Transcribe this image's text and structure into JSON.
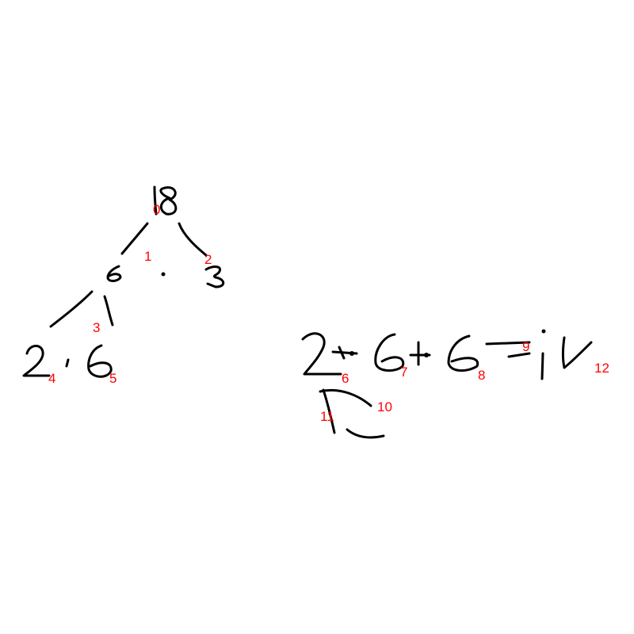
{
  "colors": {
    "background": "#ffffff",
    "ink": "#000000",
    "stroke_label": "#ff0000"
  },
  "stroke_labels": [
    "0",
    "1",
    "2",
    "3",
    "4",
    "5",
    "6",
    "7",
    "8",
    "9",
    "10",
    "11",
    "12"
  ]
}
